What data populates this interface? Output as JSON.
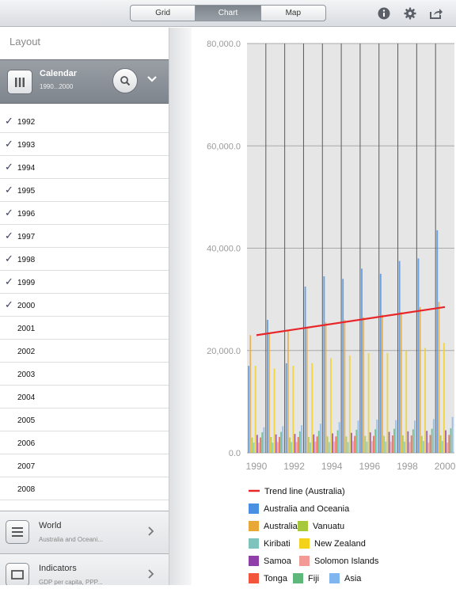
{
  "toolbar": {
    "tabs": [
      {
        "label": "Grid",
        "active": false
      },
      {
        "label": "Chart",
        "active": true
      },
      {
        "label": "Map",
        "active": false
      }
    ],
    "icons": [
      "info-icon",
      "gear-icon",
      "share-icon"
    ]
  },
  "sidebar": {
    "title": "Layout",
    "calendar": {
      "title": "Calendar",
      "subtitle": "1990...2000"
    },
    "years": [
      {
        "label": "1992",
        "checked": true
      },
      {
        "label": "1993",
        "checked": true
      },
      {
        "label": "1994",
        "checked": true
      },
      {
        "label": "1995",
        "checked": true
      },
      {
        "label": "1996",
        "checked": true
      },
      {
        "label": "1997",
        "checked": true
      },
      {
        "label": "1998",
        "checked": true
      },
      {
        "label": "1999",
        "checked": true
      },
      {
        "label": "2000",
        "checked": true
      },
      {
        "label": "2001",
        "checked": false
      },
      {
        "label": "2002",
        "checked": false
      },
      {
        "label": "2003",
        "checked": false
      },
      {
        "label": "2004",
        "checked": false
      },
      {
        "label": "2005",
        "checked": false
      },
      {
        "label": "2006",
        "checked": false
      },
      {
        "label": "2007",
        "checked": false
      },
      {
        "label": "2008",
        "checked": false
      }
    ],
    "world": {
      "title": "World",
      "subtitle": "Australia and Oceani..."
    },
    "indicators": {
      "title": "Indicators",
      "subtitle": "GDP per capita, PPP..."
    }
  },
  "chart_data": {
    "type": "bar",
    "y_ticks": [
      "80,000.0",
      "60,000.0",
      "40,000.0",
      "20,000.0",
      "0.0"
    ],
    "x_ticks": [
      "1990",
      "1992",
      "1994",
      "1996",
      "1998",
      "2000"
    ],
    "ylim": [
      0,
      80000
    ],
    "xlim": [
      1989.5,
      2000.5
    ],
    "grid": true,
    "trend": {
      "name": "Trend line (Australia)",
      "color": "#e8262a",
      "start": [
        1990,
        23000
      ],
      "end": [
        2000,
        28500
      ]
    },
    "categories": [
      1990,
      1991,
      1992,
      1993,
      1994,
      1995,
      1996,
      1997,
      1998,
      1999,
      2000
    ],
    "series": [
      {
        "name": "Australia and Oceania",
        "color": "#4a90e2",
        "values": [
          17000,
          26000,
          17500,
          32500,
          34500,
          34000,
          36000,
          35000,
          37500,
          38000,
          43500
        ]
      },
      {
        "name": "Australia",
        "color": "#e8a838",
        "values": [
          23000,
          23500,
          24000,
          24500,
          25500,
          26000,
          26500,
          27000,
          27500,
          28500,
          29500
        ]
      },
      {
        "name": "Vanuatu",
        "color": "#a6c83a",
        "values": [
          3000,
          3100,
          3000,
          3100,
          3200,
          3200,
          3300,
          3300,
          3400,
          3300,
          3400
        ]
      },
      {
        "name": "Kiribati",
        "color": "#7ec4bd",
        "values": [
          2000,
          2000,
          2100,
          2000,
          2100,
          2100,
          2200,
          2200,
          2200,
          2300,
          2300
        ]
      },
      {
        "name": "New Zealand",
        "color": "#f2d21a",
        "values": [
          17000,
          16500,
          17000,
          17500,
          18500,
          19000,
          19500,
          19500,
          20000,
          20500,
          21500
        ]
      },
      {
        "name": "Samoa",
        "color": "#8e3fa8",
        "values": [
          3500,
          3600,
          3700,
          3600,
          3800,
          3900,
          4000,
          4100,
          4200,
          4300,
          4400
        ]
      },
      {
        "name": "Solomon Islands",
        "color": "#f49a96",
        "values": [
          2000,
          2100,
          2100,
          2200,
          2200,
          2300,
          2300,
          2200,
          2100,
          2000,
          2000
        ]
      },
      {
        "name": "Tonga",
        "color": "#f2553a",
        "values": [
          3000,
          3100,
          3100,
          3200,
          3200,
          3300,
          3300,
          3400,
          3400,
          3500,
          3500
        ]
      },
      {
        "name": "Fiji",
        "color": "#5db87a",
        "values": [
          4000,
          4100,
          4200,
          4300,
          4400,
          4500,
          4600,
          4700,
          4600,
          4700,
          4800
        ]
      },
      {
        "name": "Asia",
        "color": "#7fb6ef",
        "values": [
          5000,
          5200,
          5400,
          5700,
          6000,
          6300,
          6500,
          6400,
          6300,
          6600,
          7000
        ]
      }
    ]
  },
  "legend_rows": [
    [
      "Australia and Oceania"
    ],
    [
      "Australia",
      "Vanuatu"
    ],
    [
      "Kiribati",
      "New Zealand"
    ],
    [
      "Samoa",
      "Solomon Islands"
    ],
    [
      "Tonga",
      "Fiji",
      "Asia"
    ]
  ]
}
